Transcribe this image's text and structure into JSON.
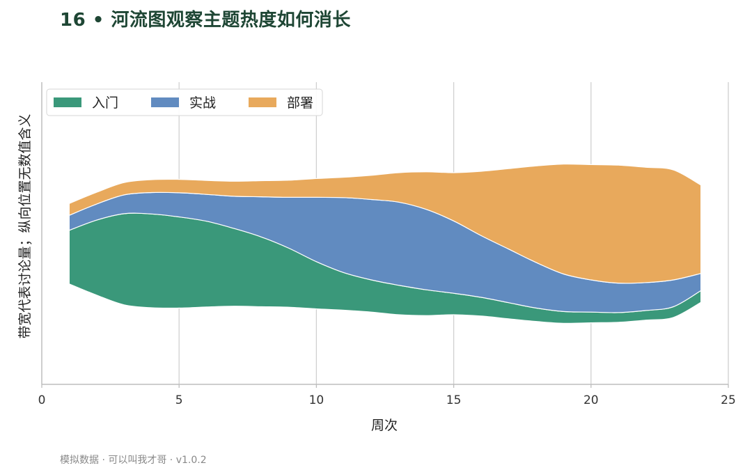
{
  "title": "16 • 河流图观察主题热度如何消长",
  "footer": "模拟数据 · 可以叫我才哥 · v1.0.2",
  "chart_data": {
    "type": "area",
    "subtype": "streamgraph",
    "xlabel": "周次",
    "ylabel": "带宽代表讨论量；纵向位置无数值含义",
    "xlim": [
      0,
      25
    ],
    "xticks": [
      0,
      5,
      10,
      15,
      20,
      25
    ],
    "grid": "vertical",
    "legend": "top-left",
    "x": [
      1,
      2,
      3,
      4,
      5,
      6,
      7,
      8,
      9,
      10,
      11,
      12,
      13,
      14,
      15,
      16,
      17,
      18,
      19,
      20,
      21,
      22,
      23,
      24
    ],
    "series": [
      {
        "name": "入门",
        "color": "#3a987a",
        "values": [
          100,
          140,
          170,
          175,
          170,
          160,
          145,
          130,
          110,
          88,
          70,
          60,
          55,
          48,
          40,
          35,
          30,
          25,
          22,
          20,
          18,
          18,
          20,
          22
        ]
      },
      {
        "name": "实战",
        "color": "#618bc0",
        "values": [
          28,
          30,
          35,
          40,
          45,
          50,
          60,
          75,
          95,
          120,
          140,
          150,
          155,
          150,
          135,
          115,
          100,
          85,
          70,
          60,
          55,
          52,
          50,
          32
        ]
      },
      {
        "name": "部署",
        "color": "#e8a95c",
        "values": [
          22,
          22,
          23,
          24,
          25,
          26,
          28,
          30,
          32,
          35,
          38,
          45,
          55,
          70,
          90,
          120,
          150,
          180,
          205,
          215,
          220,
          215,
          205,
          165
        ]
      }
    ]
  }
}
